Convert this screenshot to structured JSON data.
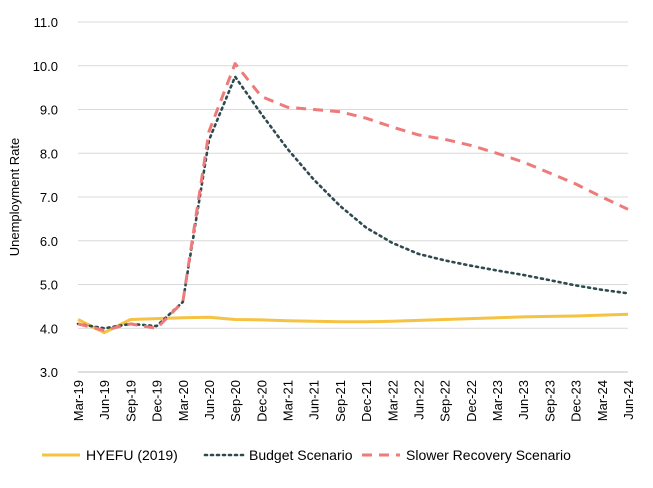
{
  "chart_data": {
    "type": "line",
    "title": "",
    "xlabel": "",
    "ylabel": "Unemployment Rate",
    "ylim": [
      3.0,
      11.0
    ],
    "yticks": [
      "3.0",
      "4.0",
      "5.0",
      "6.0",
      "7.0",
      "8.0",
      "9.0",
      "10.0",
      "11.0"
    ],
    "grid": true,
    "legend_position": "bottom",
    "x": [
      "Mar-19",
      "Jun-19",
      "Sep-19",
      "Dec-19",
      "Mar-20",
      "Jun-20",
      "Sep-20",
      "Dec-20",
      "Mar-21",
      "Jun-21",
      "Sep-21",
      "Dec-21",
      "Mar-22",
      "Jun-22",
      "Sep-22",
      "Dec-22",
      "Mar-23",
      "Jun-23",
      "Sep-23",
      "Dec-23",
      "Mar-24",
      "Jun-24"
    ],
    "series": [
      {
        "name": "HYEFU (2019)",
        "color": "#F5C242",
        "style": "solid",
        "values": [
          4.2,
          3.9,
          4.2,
          4.22,
          4.24,
          4.25,
          4.2,
          4.19,
          4.17,
          4.16,
          4.15,
          4.15,
          4.16,
          4.18,
          4.2,
          4.22,
          4.24,
          4.26,
          4.27,
          4.28,
          4.3,
          4.32
        ]
      },
      {
        "name": "Budget Scenario",
        "color": "#2E4A4F",
        "style": "dotted",
        "values": [
          4.1,
          4.0,
          4.1,
          4.05,
          4.6,
          8.3,
          9.75,
          8.9,
          8.1,
          7.4,
          6.8,
          6.3,
          5.95,
          5.7,
          5.55,
          5.43,
          5.32,
          5.22,
          5.1,
          4.98,
          4.88,
          4.8
        ]
      },
      {
        "name": "Slower Recovery Scenario",
        "color": "#EE7A7A",
        "style": "dashed",
        "values": [
          4.1,
          3.95,
          4.1,
          4.0,
          4.6,
          8.5,
          10.05,
          9.3,
          9.05,
          9.0,
          8.95,
          8.8,
          8.6,
          8.42,
          8.32,
          8.18,
          8.0,
          7.8,
          7.55,
          7.3,
          7.0,
          6.72
        ]
      }
    ]
  }
}
